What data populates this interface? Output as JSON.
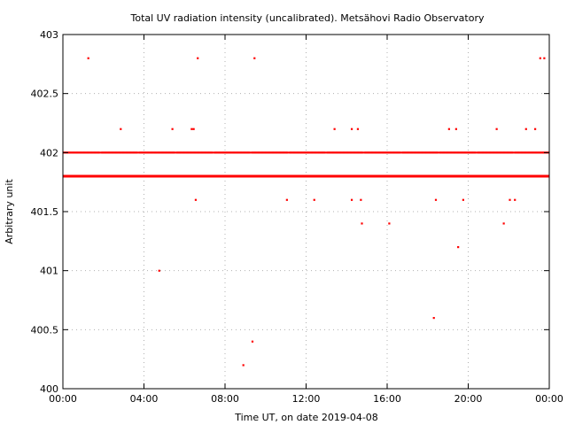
{
  "chart_data": {
    "type": "scatter",
    "title": "Total UV radiation intensity (uncalibrated). Metsähovi Radio Observatory",
    "xlabel": "Time UT, on date 2019-04-08",
    "ylabel": "Arbitrary unit",
    "x_ticks": [
      "00:00",
      "04:00",
      "08:00",
      "12:00",
      "16:00",
      "20:00",
      "00:00"
    ],
    "y_ticks": [
      "400",
      "400.5",
      "401",
      "401.5",
      "402",
      "402.5",
      "403"
    ],
    "xlim_hours": [
      0,
      24
    ],
    "ylim": [
      400,
      403
    ],
    "grid": true,
    "marker_color": "#ff0000",
    "dense_levels": [
      {
        "y": 401.8,
        "coverage": "continuous"
      },
      {
        "y": 402.0,
        "coverage": "near-continuous"
      }
    ],
    "points": [
      {
        "t": 1.25,
        "y": 402.8
      },
      {
        "t": 6.65,
        "y": 402.8
      },
      {
        "t": 9.45,
        "y": 402.8
      },
      {
        "t": 23.55,
        "y": 402.8
      },
      {
        "t": 23.75,
        "y": 402.8
      },
      {
        "t": 2.85,
        "y": 402.2
      },
      {
        "t": 5.4,
        "y": 402.2
      },
      {
        "t": 6.35,
        "y": 402.2
      },
      {
        "t": 6.45,
        "y": 402.2
      },
      {
        "t": 13.4,
        "y": 402.2
      },
      {
        "t": 14.25,
        "y": 402.2
      },
      {
        "t": 14.55,
        "y": 402.2
      },
      {
        "t": 19.05,
        "y": 402.2
      },
      {
        "t": 19.4,
        "y": 402.2
      },
      {
        "t": 21.4,
        "y": 402.2
      },
      {
        "t": 22.85,
        "y": 402.2
      },
      {
        "t": 23.3,
        "y": 402.2
      },
      {
        "t": 6.55,
        "y": 401.6
      },
      {
        "t": 11.05,
        "y": 401.6
      },
      {
        "t": 12.4,
        "y": 401.6
      },
      {
        "t": 14.25,
        "y": 401.6
      },
      {
        "t": 14.7,
        "y": 401.6
      },
      {
        "t": 18.4,
        "y": 401.6
      },
      {
        "t": 19.75,
        "y": 401.6
      },
      {
        "t": 22.05,
        "y": 401.6
      },
      {
        "t": 22.3,
        "y": 401.6
      },
      {
        "t": 14.75,
        "y": 401.4
      },
      {
        "t": 16.1,
        "y": 401.4
      },
      {
        "t": 21.75,
        "y": 401.4
      },
      {
        "t": 19.5,
        "y": 401.2
      },
      {
        "t": 4.75,
        "y": 401.0
      },
      {
        "t": 18.3,
        "y": 400.6
      },
      {
        "t": 9.35,
        "y": 400.4
      },
      {
        "t": 8.9,
        "y": 400.2
      }
    ]
  }
}
